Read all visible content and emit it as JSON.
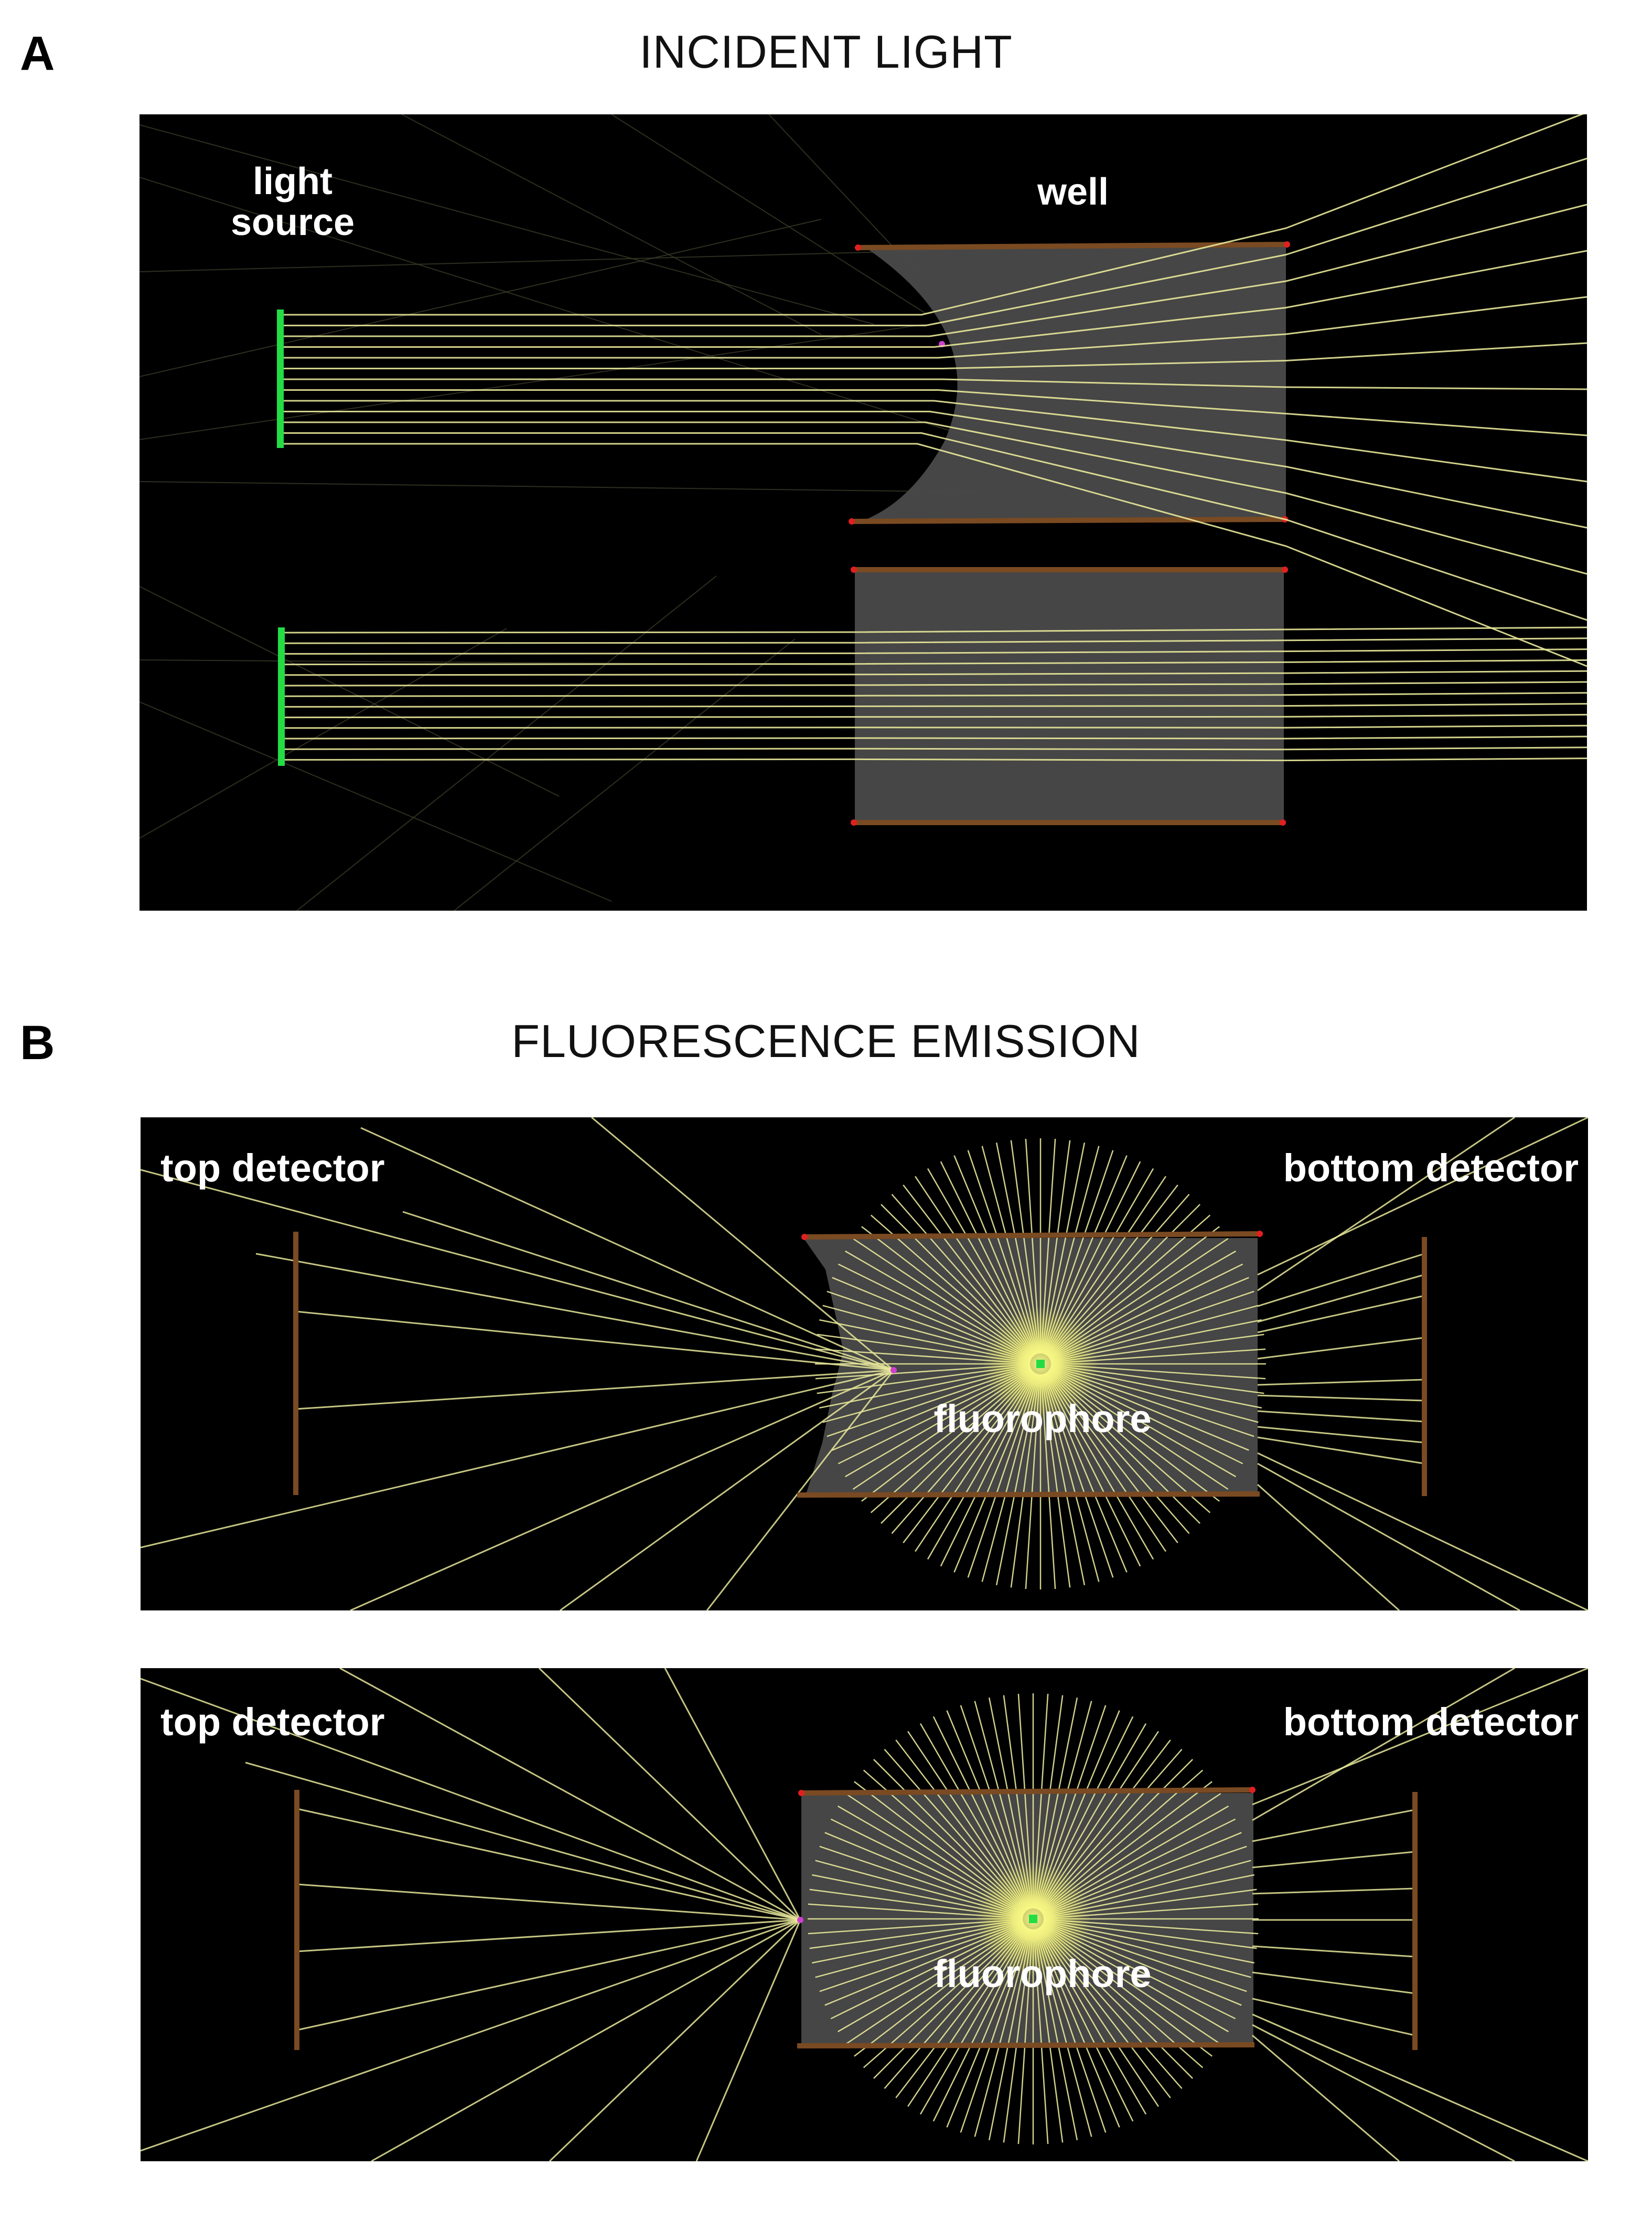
{
  "panel_a": {
    "letter": "A",
    "title": "INCIDENT LIGHT",
    "labels": {
      "light_source_line1": "light",
      "light_source_line2": "source",
      "well": "well"
    }
  },
  "panel_b": {
    "letter": "B",
    "title": "FLUORESCENCE EMISSION",
    "labels": {
      "top_detector": "top detector",
      "bottom_detector": "bottom detector",
      "fluorophore": "fluorophore"
    }
  },
  "colors": {
    "background": "#000000",
    "ray": "#e8e89a",
    "source": "#22dd44",
    "wall": "#7a4a22",
    "well_fill": "#4a4a4a",
    "corner": "#e02020",
    "meniscus_marker": "#d040d0",
    "glow": "#ffff80"
  }
}
